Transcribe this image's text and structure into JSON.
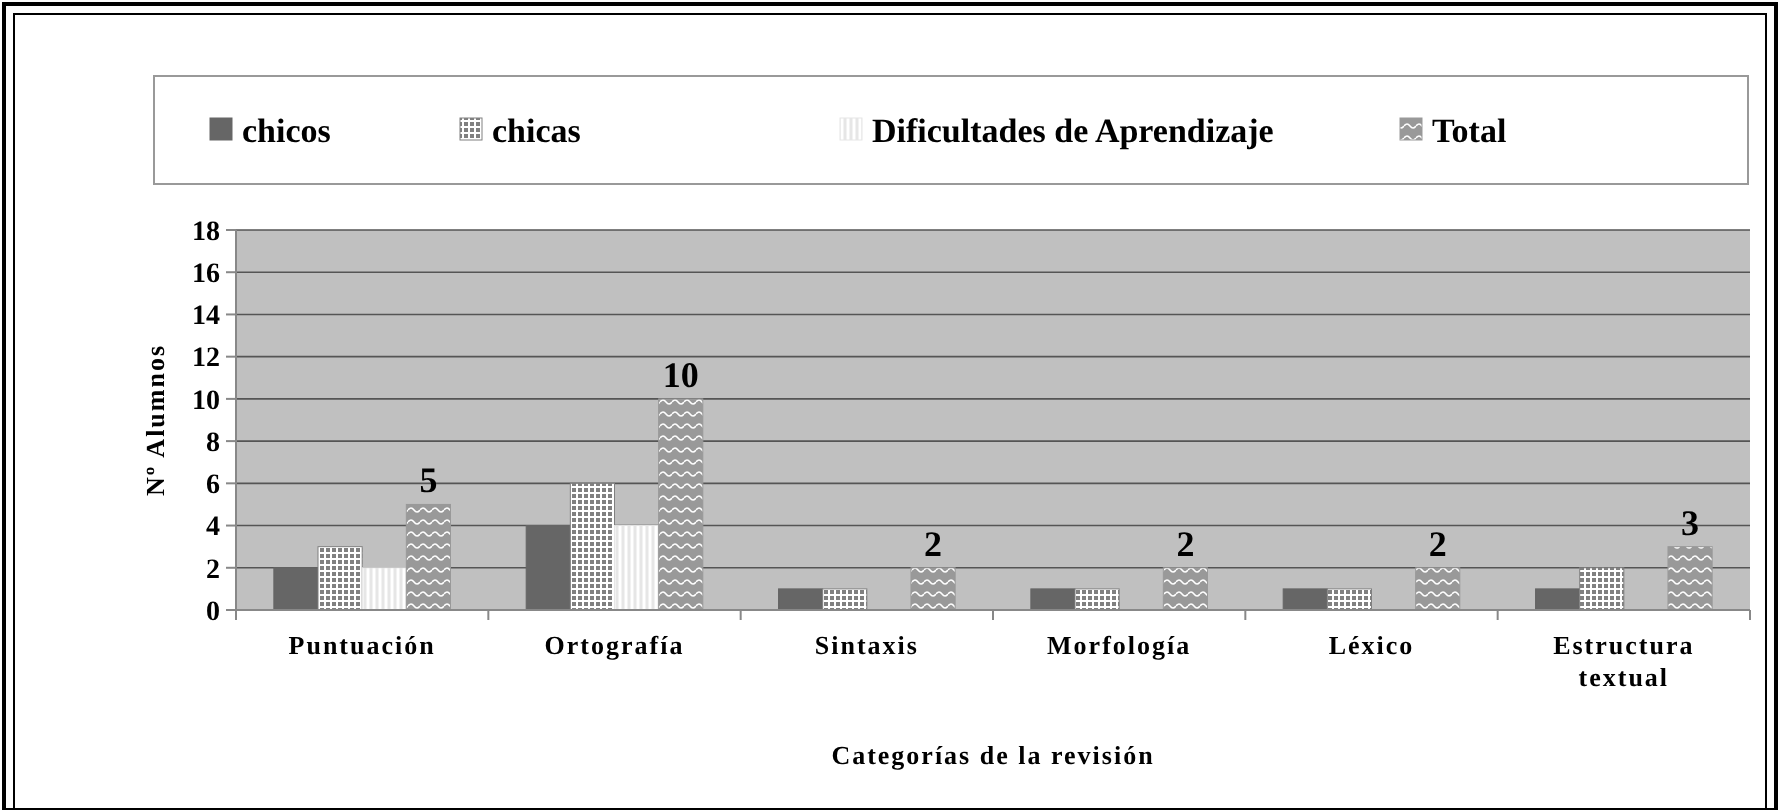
{
  "chart_data": {
    "type": "bar",
    "xlabel": "Categorías de la revisión",
    "ylabel": "Nº Alumnos",
    "categories": [
      "Puntuación",
      "Ortografía",
      "Sintaxis",
      "Morfología",
      "Léxico",
      "Estructura textual"
    ],
    "series": [
      {
        "name": "chicos",
        "color": "#666666",
        "values": [
          2,
          4,
          1,
          1,
          1,
          1
        ]
      },
      {
        "name": "chicas",
        "color": "#808080",
        "values": [
          3,
          6,
          1,
          1,
          1,
          2
        ]
      },
      {
        "name": "Dificultades de Aprendizaje",
        "color": "#e6e6e6",
        "values": [
          2,
          4,
          0,
          0,
          0,
          0
        ]
      },
      {
        "name": "Total",
        "color": "#999999",
        "values": [
          5,
          10,
          2,
          2,
          2,
          3
        ],
        "value_labels": [
          "5",
          "10",
          "2",
          "2",
          "2",
          "3"
        ]
      }
    ],
    "ylim": [
      0,
      18
    ],
    "yticks": [
      0,
      2,
      4,
      6,
      8,
      10,
      12,
      14,
      16,
      18
    ],
    "grid": "y",
    "legend": "top"
  }
}
